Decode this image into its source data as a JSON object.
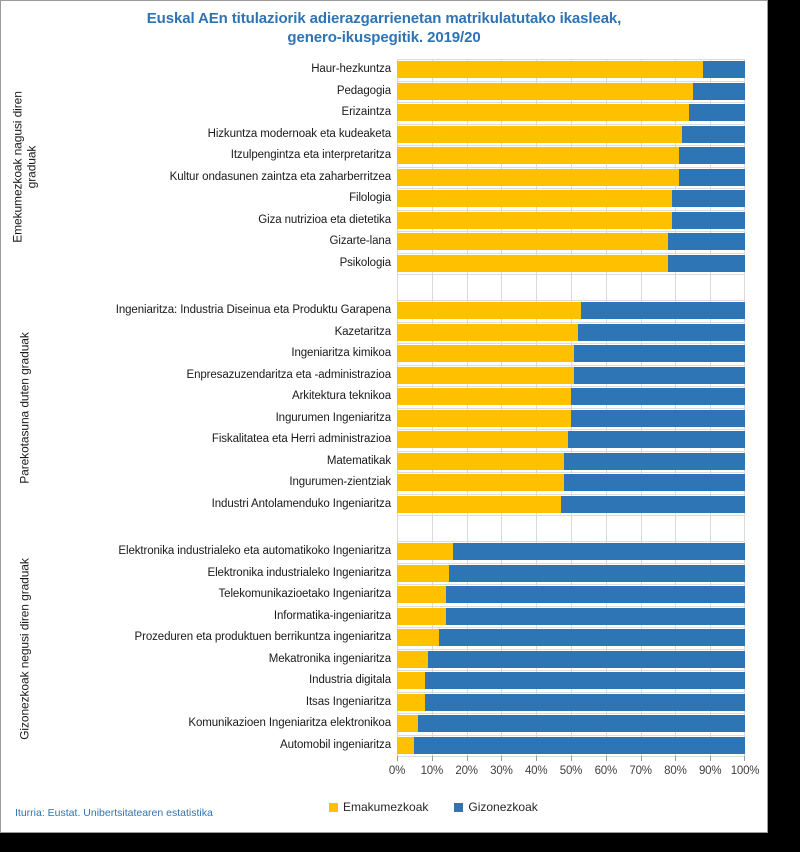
{
  "title": {
    "line1": "Euskal AEn titulaziorik adierazgarrienetan matrikulatutako ikasleak,",
    "line2": "genero-ikuspegitik. 2019/20"
  },
  "source": "Iturria: Eustat. Unibertsitatearen estatistika",
  "ui_colors": {
    "title_text": "#2e74b5",
    "source_text": "#2e74b5",
    "emakumezkoak": "#ffc000",
    "gizonezkoak": "#2e75b6"
  },
  "x_axis": {
    "ticks": [
      "0%",
      "10%",
      "20%",
      "30%",
      "40%",
      "50%",
      "60%",
      "70%",
      "80%",
      "90%",
      "100%"
    ]
  },
  "legend": [
    {
      "label": "Emakumezkoak",
      "color": "#ffc000"
    },
    {
      "label": "Gizonezkoak",
      "color": "#2e75b6"
    }
  ],
  "chart_data": {
    "type": "bar",
    "orientation": "horizontal",
    "stacked": true,
    "title": "Euskal AEn titulaziorik adierazgarrienetan matrikulatutako ikasleak, genero-ikuspegitik. 2019/20",
    "xlabel": "",
    "ylabel": "",
    "xlim": [
      0,
      100
    ],
    "x_tick_labels": [
      "0%",
      "10%",
      "20%",
      "30%",
      "40%",
      "50%",
      "60%",
      "70%",
      "80%",
      "90%",
      "100%"
    ],
    "grid": true,
    "legend_position": "bottom",
    "series_names": [
      "Emakumezkoak",
      "Gizonezkoak"
    ],
    "colors": {
      "Emakumezkoak": "#ffc000",
      "Gizonezkoak": "#2e75b6"
    },
    "groups": [
      {
        "label": "Emekumezkoak nagusi diren graduak",
        "categories": [
          "Haur-hezkuntza",
          "Pedagogia",
          "Erizaintza",
          "Hizkuntza modernoak eta kudeaketa",
          "Itzulpengintza eta interpretaritza",
          "Kultur ondasunen zaintza eta zaharberritzea",
          "Filologia",
          "Giza nutrizioa eta dietetika",
          "Gizarte-lana",
          "Psikologia"
        ],
        "series": [
          {
            "name": "Emakumezkoak",
            "values": [
              88,
              85,
              84,
              82,
              81,
              81,
              79,
              79,
              78,
              78
            ]
          },
          {
            "name": "Gizonezkoak",
            "values": [
              12,
              15,
              16,
              18,
              19,
              19,
              21,
              21,
              22,
              22
            ]
          }
        ]
      },
      {
        "label": "Parekotasuna duten graduak",
        "categories": [
          "Ingeniaritza: Industria Diseinua eta Produktu Garapena",
          "Kazetaritza",
          "Ingeniaritza kimikoa",
          "Enpresazuzendaritza eta -administrazioa",
          "Arkitektura teknikoa",
          "Ingurumen Ingeniaritza",
          "Fiskalitatea eta Herri administrazioa",
          "Matematikak",
          "Ingurumen-zientziak",
          "Industri Antolamenduko Ingeniaritza"
        ],
        "series": [
          {
            "name": "Emakumezkoak",
            "values": [
              53,
              52,
              51,
              51,
              50,
              50,
              49,
              48,
              48,
              47
            ]
          },
          {
            "name": "Gizonezkoak",
            "values": [
              47,
              48,
              49,
              49,
              50,
              50,
              51,
              52,
              52,
              53
            ]
          }
        ]
      },
      {
        "label": "Gizonezkoak negusi diren graduak",
        "categories": [
          "Elektronika industrialeko eta automatikoko Ingeniaritza",
          "Elektronika industrialeko Ingeniaritza",
          "Telekomunikazioetako Ingeniaritza",
          "Informatika-ingeniaritza",
          "Prozeduren eta produktuen berrikuntza ingeniaritza",
          "Mekatronika ingeniaritza",
          "Industria digitala",
          "Itsas Ingeniaritza",
          "Komunikazioen Ingeniaritza elektronikoa",
          "Automobil ingeniaritza"
        ],
        "series": [
          {
            "name": "Emakumezkoak",
            "values": [
              16,
              15,
              14,
              14,
              12,
              9,
              8,
              8,
              6,
              5
            ]
          },
          {
            "name": "Gizonezkoak",
            "values": [
              84,
              85,
              86,
              86,
              88,
              91,
              92,
              92,
              94,
              95
            ]
          }
        ]
      }
    ]
  }
}
